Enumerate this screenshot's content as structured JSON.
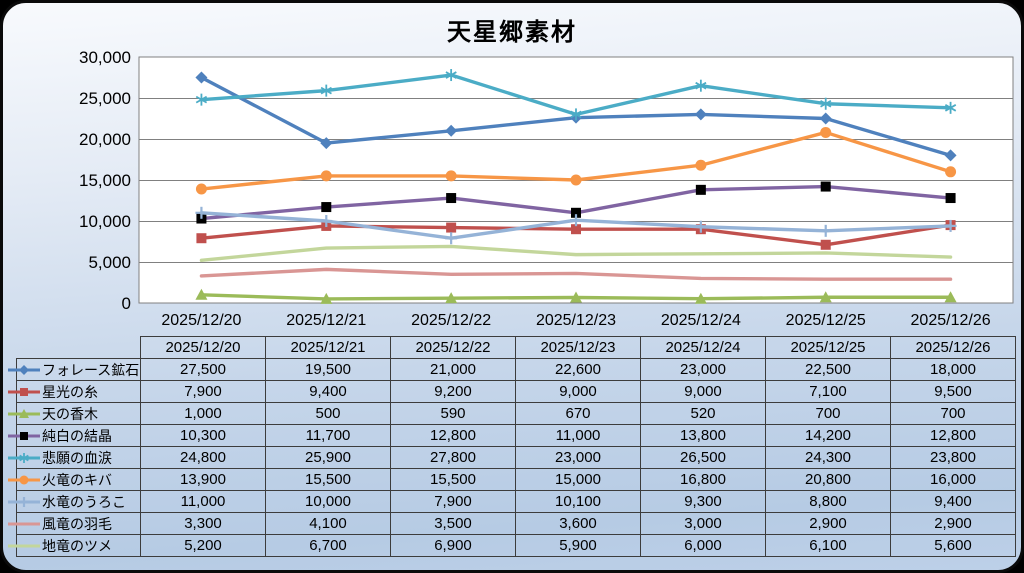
{
  "frame": {
    "background_top": "#f8fafd",
    "background_bottom": "#b6cbe4",
    "border_color": "#0a0a0a"
  },
  "chart_data": {
    "type": "line",
    "title": "天星郷素材",
    "xlabel": "",
    "ylabel": "",
    "ylim": [
      0,
      30000
    ],
    "ytick_interval": 5000,
    "y_tick_labels": [
      "0",
      "5,000",
      "10,000",
      "15,000",
      "20,000",
      "25,000",
      "30,000"
    ],
    "grid": "horizontal",
    "plot_background": "#ffffff",
    "gridline_color": "#808080",
    "legend_position": "data-table-left-column",
    "categories": [
      "2025/12/20",
      "2025/12/21",
      "2025/12/22",
      "2025/12/23",
      "2025/12/24",
      "2025/12/25",
      "2025/12/26"
    ],
    "series": [
      {
        "name": "フォレース鉱石",
        "color": "#4F81BD",
        "marker": "diamond",
        "marker_color": "#4F81BD",
        "values": [
          27500,
          19500,
          21000,
          22600,
          23000,
          22500,
          18000
        ]
      },
      {
        "name": "星光の糸",
        "color": "#C0504D",
        "marker": "square",
        "marker_color": "#C0504D",
        "values": [
          7900,
          9400,
          9200,
          9000,
          9000,
          7100,
          9500
        ]
      },
      {
        "name": "天の香木",
        "color": "#9BBB59",
        "marker": "triangle",
        "marker_color": "#9BBB59",
        "values": [
          1000,
          500,
          590,
          670,
          520,
          700,
          700
        ]
      },
      {
        "name": "純白の結晶",
        "color": "#8064A2",
        "marker": "square",
        "marker_color": "#000000",
        "values": [
          10300,
          11700,
          12800,
          11000,
          13800,
          14200,
          12800
        ]
      },
      {
        "name": "悲願の血涙",
        "color": "#4BACC6",
        "marker": "asterisk",
        "marker_color": "#4BACC6",
        "values": [
          24800,
          25900,
          27800,
          23000,
          26500,
          24300,
          23800
        ]
      },
      {
        "name": "火竜のキバ",
        "color": "#F79646",
        "marker": "circle",
        "marker_color": "#F79646",
        "values": [
          13900,
          15500,
          15500,
          15000,
          16800,
          20800,
          16000
        ]
      },
      {
        "name": "水竜のうろこ",
        "color": "#95B3D7",
        "marker": "plus",
        "marker_color": "#95B3D7",
        "values": [
          11000,
          10000,
          7900,
          10100,
          9300,
          8800,
          9400
        ]
      },
      {
        "name": "風竜の羽毛",
        "color": "#D99694",
        "marker": "none",
        "marker_color": "#D99694",
        "values": [
          3300,
          4100,
          3500,
          3600,
          3000,
          2900,
          2900
        ]
      },
      {
        "name": "地竜のツメ",
        "color": "#C3D69B",
        "marker": "none",
        "marker_color": "#C3D69B",
        "values": [
          5200,
          6700,
          6900,
          5900,
          6000,
          6100,
          5600
        ]
      }
    ]
  },
  "table": {
    "border_color": "#3c3c3c",
    "text_color": "#000000"
  }
}
